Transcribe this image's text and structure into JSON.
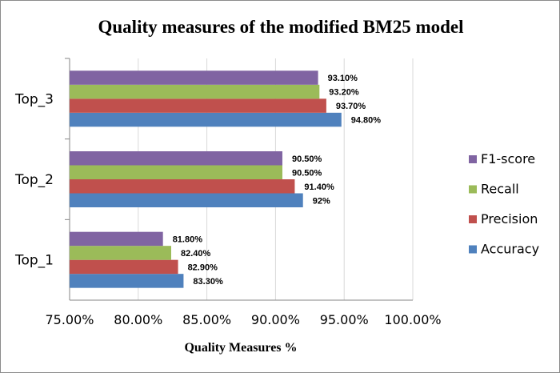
{
  "chart_data": {
    "type": "bar",
    "orientation": "horizontal",
    "title": "Quality measures of the modified BM25 model",
    "xlabel": "Quality Measures %",
    "ylabel": "",
    "xlim": [
      75,
      100
    ],
    "x_ticks": [
      75,
      80,
      85,
      90,
      95,
      100
    ],
    "x_tick_labels": [
      "75.00%",
      "80.00%",
      "85.00%",
      "90.00%",
      "95.00%",
      "100.00%"
    ],
    "categories": [
      "Top_1",
      "Top_2",
      "Top_3"
    ],
    "series": [
      {
        "name": "Accuracy",
        "color": "#4f81bd",
        "values": [
          83.3,
          92.0,
          94.8
        ],
        "labels": [
          "83.30%",
          "92%",
          "94.80%"
        ]
      },
      {
        "name": "Precision",
        "color": "#c0504d",
        "values": [
          82.9,
          91.4,
          93.7
        ],
        "labels": [
          "82.90%",
          "91.40%",
          "93.70%"
        ]
      },
      {
        "name": "Recall",
        "color": "#9bbb59",
        "values": [
          82.4,
          90.5,
          93.2
        ],
        "labels": [
          "82.40%",
          "90.50%",
          "93.20%"
        ]
      },
      {
        "name": "F1-score",
        "color": "#8064a2",
        "values": [
          81.8,
          90.5,
          93.1
        ],
        "labels": [
          "81.80%",
          "90.50%",
          "93.10%"
        ]
      }
    ],
    "legend_order": [
      "F1-score",
      "Recall",
      "Precision",
      "Accuracy"
    ],
    "legend_position": "right",
    "grid": true
  }
}
